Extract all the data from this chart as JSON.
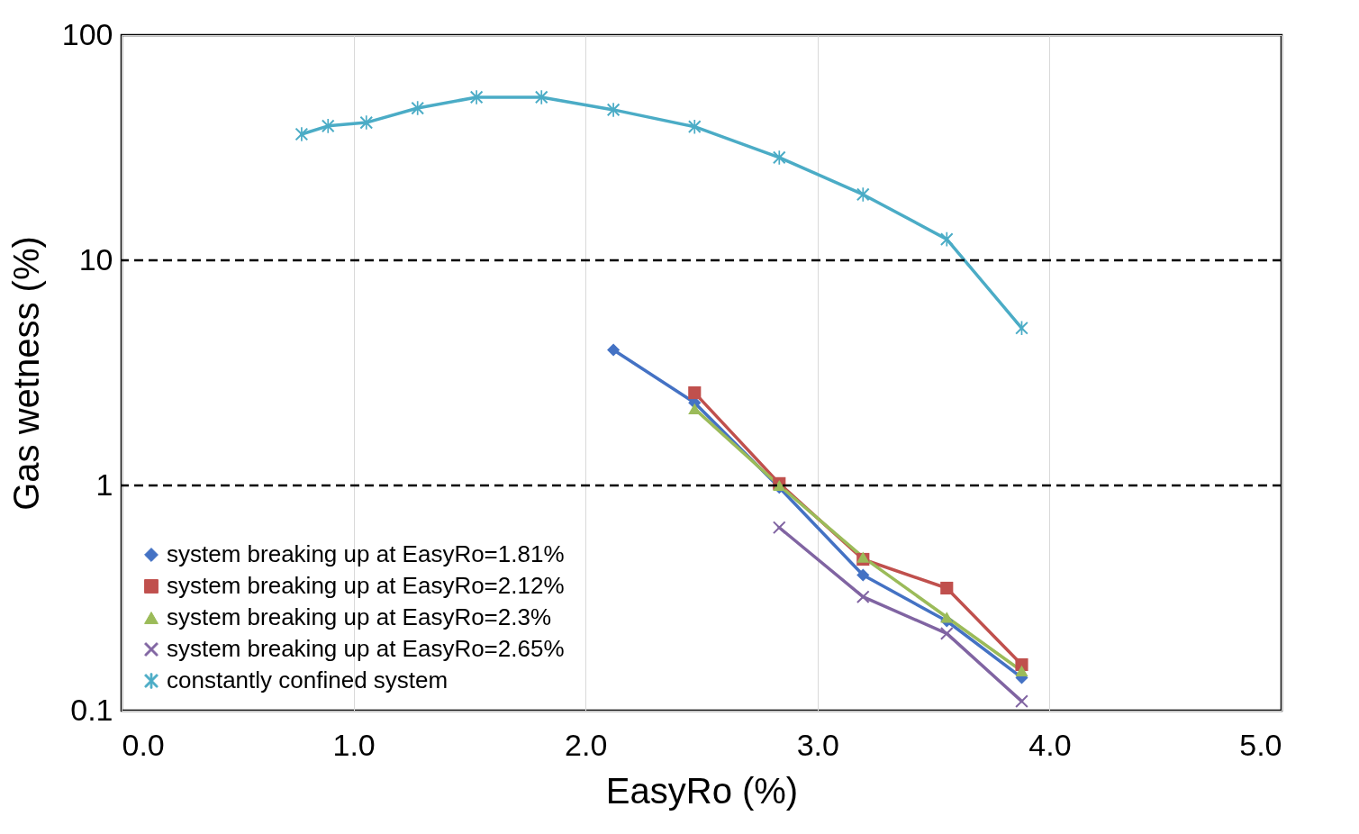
{
  "chart_data": {
    "type": "line",
    "xlabel": "EasyRo (%)",
    "ylabel": "Gas wetness (%)",
    "log": "y",
    "grid": true,
    "legend": "bottom left",
    "xlim": [
      0,
      5
    ],
    "xticks": [
      {
        "value": 0,
        "label": "0.0"
      },
      {
        "value": 1,
        "label": "1.0"
      },
      {
        "value": 2,
        "label": "2.0"
      },
      {
        "value": 3,
        "label": "3.0"
      },
      {
        "value": 4,
        "label": "4.0"
      },
      {
        "value": 5,
        "label": "5.0"
      }
    ],
    "ylim": [
      0.1,
      100
    ],
    "yticks": [
      0.1,
      1,
      10,
      100
    ],
    "ref_lines": [
      {
        "axis": "y",
        "value": 10,
        "color": "#000000",
        "line_style": "dashed"
      },
      {
        "axis": "y",
        "value": 1,
        "color": "#000000",
        "line_style": "dashed"
      }
    ],
    "series": [
      {
        "name": "system breaking up at EasyRo=1.81%",
        "color": "#4472c4",
        "marker": "diamond",
        "x": [
          2.12,
          2.47,
          2.835,
          3.196,
          3.557,
          3.88
        ],
        "values": [
          4.0,
          2.33,
          0.98,
          0.4,
          0.25,
          0.14
        ]
      },
      {
        "name": "system breaking up at EasyRo=2.12%",
        "color": "#c0504d",
        "marker": "square",
        "x": [
          2.47,
          2.835,
          3.196,
          3.557,
          3.88
        ],
        "values": [
          2.58,
          1.02,
          0.47,
          0.35,
          0.16
        ]
      },
      {
        "name": "system breaking up at EasyRo=2.3%",
        "color": "#9bbb59",
        "marker": "triangle",
        "x": [
          2.47,
          2.835,
          3.196,
          3.557,
          3.88
        ],
        "values": [
          2.19,
          1.0,
          0.48,
          0.26,
          0.15
        ]
      },
      {
        "name": "system breaking up at EasyRo=2.65%",
        "color": "#8064a2",
        "marker": "cross",
        "x": [
          2.835,
          3.196,
          3.557,
          3.88
        ],
        "values": [
          0.65,
          0.32,
          0.22,
          0.11
        ]
      },
      {
        "name": "constantly confined system",
        "color": "#4bacc6",
        "marker": "star",
        "x": [
          0.776,
          0.89,
          1.055,
          1.276,
          1.53,
          1.81,
          2.12,
          2.47,
          2.835,
          3.196,
          3.557,
          3.88
        ],
        "values": [
          36.3,
          39.5,
          40.9,
          47.4,
          53,
          53,
          46.6,
          39.2,
          28.6,
          19.6,
          12.4,
          5.0
        ]
      }
    ]
  }
}
